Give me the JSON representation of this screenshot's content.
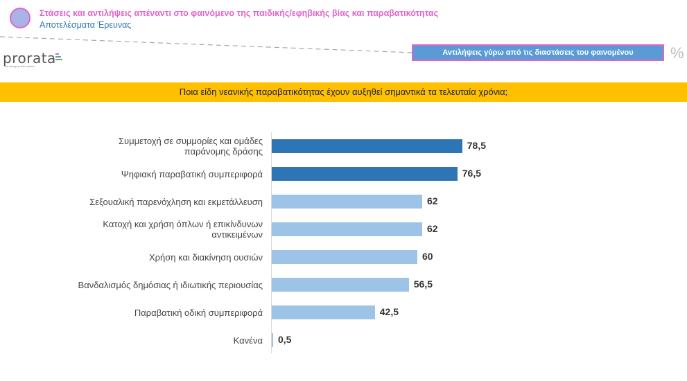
{
  "header": {
    "title": "Στάσεις και αντιλήψεις απέναντι στο φαινόμενο της παιδικής/εφηβικής βίας και παραβατικότητας",
    "subtitle": "Αποτελέσματα Έρευνας",
    "title_color": "#e064c8",
    "subtitle_color": "#2e75b6"
  },
  "brand": {
    "name": "prorata",
    "tagline": "we design public opinion"
  },
  "section_tag": "Αντιλήψεις γύρω από τις διαστάσεις του φαινομένου",
  "unit_symbol": "%",
  "question": {
    "text": "Ποια είδη νεανικής παραβατικότητας έχουν αυξηθεί σημαντικά τα τελευταία χρόνια;",
    "band_color": "#ffc000"
  },
  "colors": {
    "highlight_bar": "#2e75b6",
    "default_bar": "#9dc3e6"
  },
  "chart_data": {
    "type": "bar",
    "orientation": "horizontal",
    "title": "Ποια είδη νεανικής παραβατικότητας έχουν αυξηθεί σημαντικά τα τελευταία χρόνια;",
    "categories": [
      [
        "Συμμετοχή σε συμμορίες και ομάδες",
        "παράνομης δράσης"
      ],
      [
        "Ψηφιακή παραβατική συμπεριφορά"
      ],
      [
        "Σεξουαλική παρενόχληση και εκμετάλλευση"
      ],
      [
        "Κατοχή και χρήση όπλων ή επικίνδυνων",
        "αντικειμένων"
      ],
      [
        "Χρήση και διακίνηση ουσιών"
      ],
      [
        "Βανδαλισμός δημόσιας ή ιδιωτικής περιουσίας"
      ],
      [
        "Παραβατική οδική συμπεριφορά"
      ],
      [
        "Κανένα"
      ]
    ],
    "values": [
      78.5,
      76.5,
      62,
      62,
      60,
      56.5,
      42.5,
      0.5
    ],
    "value_labels": [
      "78,5",
      "76,5",
      "62",
      "62",
      "60",
      "56,5",
      "42,5",
      "0,5"
    ],
    "highlighted": [
      true,
      true,
      false,
      false,
      false,
      false,
      false,
      false
    ],
    "xlim": [
      0,
      100
    ],
    "grid": false,
    "legend": "none"
  }
}
